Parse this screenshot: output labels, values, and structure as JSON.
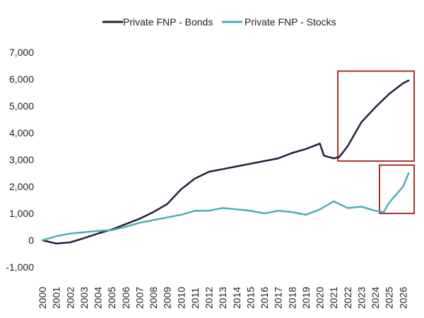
{
  "chart_data": {
    "type": "line",
    "ylim": [
      -1000,
      7000
    ],
    "yticks": [
      -1000,
      0,
      1000,
      2000,
      3000,
      4000,
      5000,
      6000,
      7000
    ],
    "ytick_labels": [
      "-1,000",
      "0",
      "1,000",
      "2,000",
      "3,000",
      "4,000",
      "5,000",
      "6,000",
      "7,000"
    ],
    "xlim": [
      2000,
      2027
    ],
    "xtick_labels": [
      "2000",
      "2001",
      "2002",
      "2003",
      "2004",
      "2005",
      "2006",
      "2007",
      "2008",
      "2009",
      "2010",
      "2011",
      "2012",
      "2013",
      "2014",
      "2015",
      "2016",
      "2017",
      "2018",
      "2019",
      "2020",
      "2021",
      "2022",
      "2023",
      "2024",
      "2025",
      "2026"
    ],
    "grid": false,
    "legend_position": "top-center",
    "series": [
      {
        "name": "Private FNP - Bonds",
        "color": "#23203a",
        "x": [
          2000,
          2001,
          2002,
          2003,
          2004,
          2005,
          2006,
          2007,
          2008,
          2009,
          2010,
          2011,
          2012,
          2013,
          2014,
          2015,
          2016,
          2017,
          2018,
          2019,
          2020,
          2020.3,
          2021,
          2021.4,
          2022,
          2023,
          2024,
          2025,
          2026,
          2026.4
        ],
        "y": [
          0,
          -120,
          -80,
          80,
          250,
          400,
          600,
          800,
          1050,
          1350,
          1900,
          2300,
          2550,
          2650,
          2750,
          2850,
          2950,
          3050,
          3250,
          3400,
          3600,
          3150,
          3050,
          3100,
          3500,
          4400,
          4950,
          5450,
          5850,
          5950
        ]
      },
      {
        "name": "Private FNP - Stocks",
        "color": "#4ab0b5",
        "x": [
          2000,
          2001,
          2002,
          2003,
          2004,
          2005,
          2006,
          2007,
          2008,
          2009,
          2010,
          2011,
          2012,
          2013,
          2014,
          2015,
          2016,
          2017,
          2018,
          2019,
          2020,
          2021,
          2022,
          2023,
          2024,
          2024.6,
          2025,
          2026,
          2026.4
        ],
        "y": [
          0,
          150,
          250,
          300,
          350,
          380,
          500,
          650,
          750,
          850,
          950,
          1100,
          1100,
          1200,
          1150,
          1100,
          1000,
          1100,
          1050,
          950,
          1150,
          1450,
          1200,
          1250,
          1100,
          1050,
          1400,
          2000,
          2500
        ]
      }
    ],
    "annotations": [
      {
        "type": "box",
        "color": "#a83232",
        "x_range": [
          2021.3,
          2026.8
        ],
        "y_range": [
          2950,
          6300
        ]
      },
      {
        "type": "box",
        "color": "#a83232",
        "x_range": [
          2024.3,
          2026.8
        ],
        "y_range": [
          1000,
          2800
        ]
      }
    ]
  }
}
